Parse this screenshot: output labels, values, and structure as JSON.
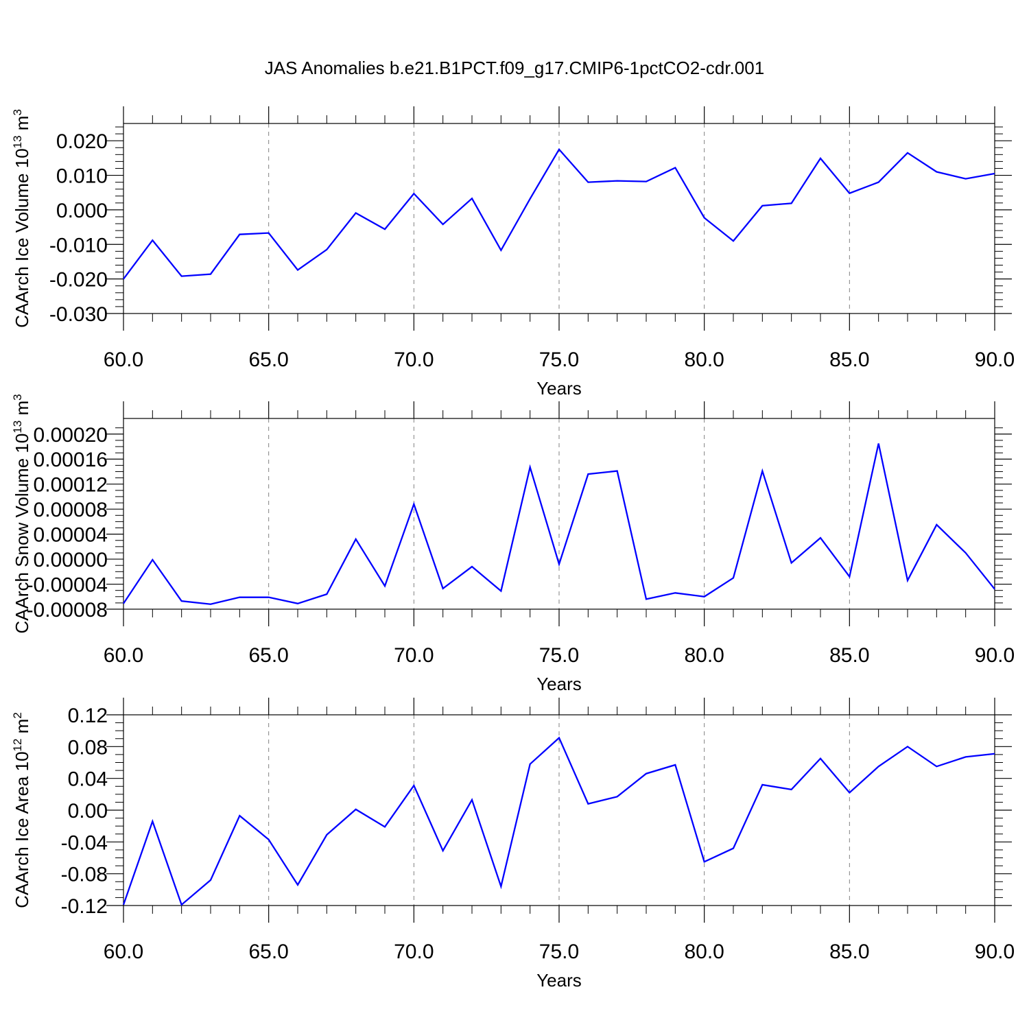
{
  "title": "JAS Anomalies b.e21.B1PCT.f09_g17.CMIP6-1pctCO2-cdr.001",
  "colors": {
    "line": "#0000ff",
    "axis": "#000000",
    "grid": "#808080"
  },
  "chart_data": [
    {
      "type": "line",
      "xlabel": "Years",
      "ylabel_main": "CAArch Ice Volume 10",
      "ylabel_exp": "13",
      "ylabel_unit_base": " m",
      "ylabel_unit_exp": "3",
      "xlim": [
        60,
        90
      ],
      "ylim": [
        -0.03,
        0.025
      ],
      "xticks": [
        60,
        65,
        70,
        75,
        80,
        85,
        90
      ],
      "xtick_labels": [
        "60.0",
        "65.0",
        "70.0",
        "75.0",
        "80.0",
        "85.0",
        "90.0"
      ],
      "yticks": [
        -0.03,
        -0.02,
        -0.01,
        0.0,
        0.01,
        0.02
      ],
      "ytick_labels": [
        "-0.030",
        "-0.020",
        "-0.010",
        "0.000",
        "0.010",
        "0.020"
      ],
      "yminor_step": 0.002,
      "grid_x": true,
      "x": [
        60,
        61,
        62,
        63,
        64,
        65,
        66,
        67,
        68,
        69,
        70,
        71,
        72,
        73,
        74,
        75,
        76,
        77,
        78,
        79,
        80,
        81,
        82,
        83,
        84,
        85,
        86,
        87,
        88,
        89,
        90
      ],
      "series": [
        {
          "values": [
            -0.02,
            -0.0088,
            -0.0192,
            -0.0186,
            -0.0071,
            -0.0067,
            -0.0174,
            -0.0115,
            -0.0009,
            -0.0056,
            0.0047,
            -0.0042,
            0.0033,
            -0.0117,
            0.0032,
            0.0175,
            0.008,
            0.0084,
            0.0082,
            0.0122,
            -0.0023,
            -0.009,
            0.0012,
            0.0019,
            0.0149,
            0.0048,
            0.008,
            0.0165,
            0.011,
            0.009,
            0.0105
          ]
        }
      ]
    },
    {
      "type": "line",
      "xlabel": "Years",
      "ylabel_main": "CAArch Snow Volume 10",
      "ylabel_exp": "13",
      "ylabel_unit_base": " m",
      "ylabel_unit_exp": "3",
      "xlim": [
        60,
        90
      ],
      "ylim": [
        -8e-05,
        0.000225
      ],
      "xticks": [
        60,
        65,
        70,
        75,
        80,
        85,
        90
      ],
      "xtick_labels": [
        "60.0",
        "65.0",
        "70.0",
        "75.0",
        "80.0",
        "85.0",
        "90.0"
      ],
      "yticks": [
        -8e-05,
        -4e-05,
        0.0,
        4e-05,
        8e-05,
        0.00012,
        0.00016,
        0.0002
      ],
      "ytick_labels": [
        "-0.00008",
        "-0.00004",
        "0.00000",
        "0.00004",
        "0.00008",
        "0.00012",
        "0.00016",
        "0.00020"
      ],
      "yminor_step": 1e-05,
      "grid_x": true,
      "x": [
        60,
        61,
        62,
        63,
        64,
        65,
        66,
        67,
        68,
        69,
        70,
        71,
        72,
        73,
        74,
        75,
        76,
        77,
        78,
        79,
        80,
        81,
        82,
        83,
        84,
        85,
        86,
        87,
        88,
        89,
        90
      ],
      "series": [
        {
          "values": [
            -7.1e-05,
            -1e-06,
            -6.7e-05,
            -7.2e-05,
            -6.1e-05,
            -6.1e-05,
            -7.1e-05,
            -5.6e-05,
            3.2e-05,
            -4.3e-05,
            8.8e-05,
            -4.7e-05,
            -1.2e-05,
            -5.1e-05,
            0.000147,
            -8e-06,
            0.000136,
            0.000141,
            -6.4e-05,
            -5.4e-05,
            -6e-05,
            -3e-05,
            0.000141,
            -6e-06,
            3.4e-05,
            -2.8e-05,
            0.000185,
            -3.4e-05,
            5.5e-05,
            1e-05,
            -4.8e-05
          ]
        }
      ]
    },
    {
      "type": "line",
      "xlabel": "Years",
      "ylabel_main": "CAArch Ice Area 10",
      "ylabel_exp": "12",
      "ylabel_unit_base": " m",
      "ylabel_unit_exp": "2",
      "xlim": [
        60,
        90
      ],
      "ylim": [
        -0.12,
        0.12
      ],
      "xticks": [
        60,
        65,
        70,
        75,
        80,
        85,
        90
      ],
      "xtick_labels": [
        "60.0",
        "65.0",
        "70.0",
        "75.0",
        "80.0",
        "85.0",
        "90.0"
      ],
      "yticks": [
        -0.12,
        -0.08,
        -0.04,
        0.0,
        0.04,
        0.08,
        0.12
      ],
      "ytick_labels": [
        "-0.12",
        "-0.08",
        "-0.04",
        "0.00",
        "0.04",
        "0.08",
        "0.12"
      ],
      "yminor_step": 0.01,
      "grid_x": true,
      "x": [
        60,
        61,
        62,
        63,
        64,
        65,
        66,
        67,
        68,
        69,
        70,
        71,
        72,
        73,
        74,
        75,
        76,
        77,
        78,
        79,
        80,
        81,
        82,
        83,
        84,
        85,
        86,
        87,
        88,
        89,
        90
      ],
      "series": [
        {
          "values": [
            -0.119,
            -0.014,
            -0.119,
            -0.088,
            -0.007,
            -0.037,
            -0.094,
            -0.031,
            0.001,
            -0.021,
            0.031,
            -0.051,
            0.013,
            -0.096,
            0.058,
            0.091,
            0.008,
            0.017,
            0.046,
            0.057,
            -0.065,
            -0.048,
            0.032,
            0.026,
            0.065,
            0.022,
            0.055,
            0.08,
            0.055,
            0.067,
            0.071
          ]
        }
      ]
    }
  ]
}
